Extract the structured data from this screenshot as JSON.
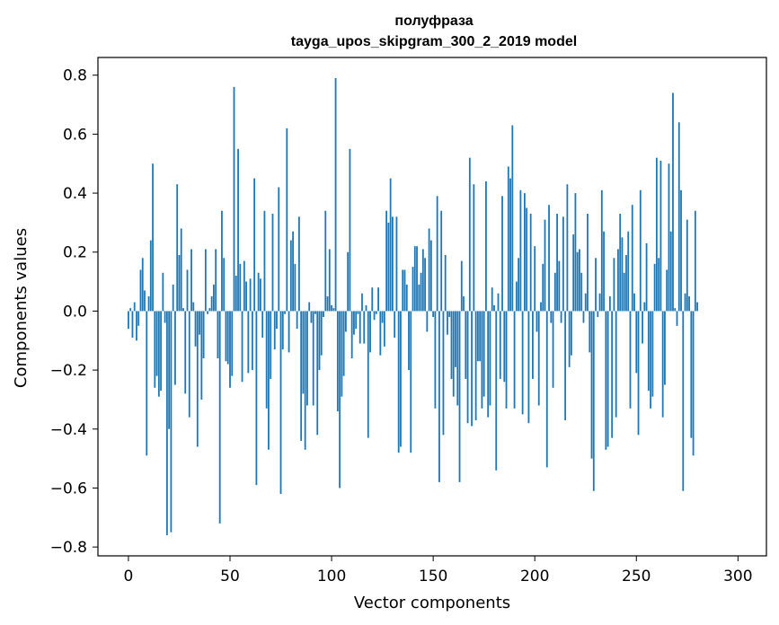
{
  "chart_data": {
    "type": "bar",
    "title": "полуфраза",
    "subtitle": "tayga_upos_skipgram_300_2_2019 model",
    "xlabel": "Vector components",
    "ylabel": "Components values",
    "xlim": [
      -15,
      314
    ],
    "ylim": [
      -0.83,
      0.86
    ],
    "xticks": [
      0,
      50,
      100,
      150,
      200,
      250,
      300
    ],
    "xtick_labels": [
      "0",
      "50",
      "100",
      "150",
      "200",
      "250",
      "300"
    ],
    "yticks": [
      0.8,
      0.6,
      0.4,
      0.2,
      0.0,
      -0.2,
      -0.4,
      -0.6,
      -0.8
    ],
    "ytick_labels": [
      "0.8",
      "0.6",
      "0.4",
      "0.2",
      "0.0",
      "−0.2",
      "−0.4",
      "−0.6",
      "−0.8"
    ],
    "grid": false,
    "bar_color": "#1f77b4",
    "values": [
      -0.06,
      0.01,
      -0.09,
      0.03,
      -0.1,
      -0.05,
      0.14,
      0.18,
      0.07,
      -0.49,
      0.05,
      0.24,
      0.5,
      -0.26,
      -0.22,
      -0.29,
      -0.27,
      0.13,
      -0.04,
      -0.76,
      -0.4,
      -0.75,
      0.09,
      -0.25,
      0.43,
      0.19,
      0.28,
      0.01,
      -0.28,
      0.14,
      -0.36,
      0.21,
      0.03,
      -0.12,
      -0.46,
      -0.08,
      -0.3,
      -0.16,
      0.21,
      -0.01,
      0.01,
      0.05,
      0.09,
      0.21,
      -0.16,
      -0.72,
      0.34,
      0.18,
      -0.17,
      -0.18,
      -0.26,
      -0.22,
      0.76,
      0.12,
      0.55,
      0.16,
      -0.24,
      0.17,
      0.1,
      -0.21,
      0.11,
      -0.2,
      0.45,
      -0.59,
      0.13,
      0.11,
      -0.09,
      0.34,
      -0.33,
      -0.47,
      -0.23,
      0.33,
      -0.13,
      -0.06,
      0.42,
      -0.62,
      -0.13,
      -0.01,
      0.62,
      -0.14,
      0.24,
      0.27,
      0.16,
      -0.06,
      0.32,
      -0.44,
      -0.28,
      -0.47,
      -0.32,
      0.03,
      -0.04,
      -0.32,
      -0.01,
      -0.42,
      -0.2,
      -0.15,
      -0.02,
      0.34,
      0.05,
      0.21,
      0.02,
      0.01,
      0.79,
      -0.34,
      -0.6,
      -0.29,
      -0.22,
      -0.07,
      0.2,
      0.55,
      -0.16,
      -0.08,
      -0.06,
      -0.01,
      -0.11,
      0.06,
      -0.11,
      0.02,
      -0.43,
      -0.14,
      0.08,
      -0.03,
      -0.01,
      0.08,
      -0.15,
      -0.04,
      -0.12,
      0.34,
      0.3,
      0.45,
      0.32,
      -0.09,
      0.32,
      -0.48,
      -0.46,
      0.14,
      0.14,
      0.09,
      -0.2,
      -0.48,
      0.15,
      0.22,
      0.22,
      0.09,
      0.13,
      0.21,
      0.18,
      -0.07,
      0.28,
      0.24,
      -0.02,
      -0.33,
      0.39,
      -0.58,
      0.34,
      -0.42,
      0.19,
      -0.08,
      -0.02,
      -0.23,
      -0.29,
      -0.19,
      -0.32,
      -0.58,
      0.17,
      0.05,
      -0.23,
      -0.38,
      0.52,
      -0.39,
      0.43,
      -0.37,
      -0.17,
      -0.17,
      -0.33,
      -0.29,
      0.44,
      -0.36,
      -0.32,
      0.08,
      0.02,
      -0.54,
      0.06,
      -0.23,
      0.39,
      -0.24,
      -0.33,
      0.49,
      0.45,
      0.63,
      -0.33,
      0.1,
      0.18,
      0.41,
      -0.35,
      0.4,
      0.35,
      -0.38,
      0.33,
      -0.23,
      0.22,
      -0.07,
      -0.32,
      0.03,
      0.16,
      0.31,
      -0.53,
      0.36,
      -0.04,
      -0.26,
      0.13,
      0.33,
      0.17,
      -0.04,
      0.32,
      -0.37,
      0.43,
      -0.19,
      -0.15,
      0.26,
      0.4,
      0.2,
      0.21,
      0.13,
      -0.04,
      0.06,
      0.33,
      -0.14,
      -0.5,
      -0.61,
      0.18,
      -0.02,
      0.06,
      0.41,
      0.27,
      -0.47,
      -0.46,
      0.05,
      -0.43,
      0.18,
      -0.36,
      0.21,
      0.33,
      0.25,
      0.13,
      0.19,
      0.27,
      -0.33,
      0.36,
      0.06,
      -0.21,
      -0.42,
      0.41,
      -0.11,
      0.03,
      0.23,
      -0.27,
      -0.33,
      -0.29,
      0.16,
      0.52,
      0.18,
      0.51,
      -0.36,
      -0.25,
      0.14,
      0.5,
      0.27,
      0.74,
      0.01,
      -0.05,
      0.64,
      0.41,
      -0.61,
      0.06,
      0.31,
      0.05,
      -0.43,
      -0.49,
      0.34,
      0.03
    ]
  }
}
